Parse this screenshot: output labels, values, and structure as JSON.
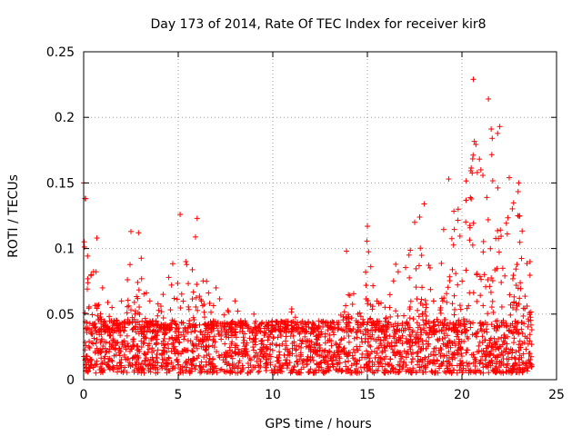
{
  "chart_data": {
    "type": "scatter",
    "title": "Day 173 of 2014, Rate Of TEC Index for receiver kir8",
    "xlabel": "GPS time / hours",
    "ylabel": "ROTI / TECUs",
    "xlim": [
      0,
      25
    ],
    "ylim": [
      0,
      0.25
    ],
    "xticks": [
      0,
      5,
      10,
      15,
      20,
      25
    ],
    "yticks": [
      0,
      0.05,
      0.1,
      0.15,
      0.2,
      0.25
    ],
    "xtick_labels": [
      "0",
      "5",
      "10",
      "15",
      "20",
      "25"
    ],
    "ytick_labels": [
      "0",
      "0.05",
      "0.1",
      "0.15",
      "0.2",
      "0.25"
    ],
    "grid": true,
    "marker": "+",
    "color": "#ff0000",
    "data_x_range": [
      0,
      23.7
    ],
    "series_outline": [
      {
        "x": 0.0,
        "y": 0.15
      },
      {
        "x": 0.1,
        "y": 0.138
      },
      {
        "x": 0.4,
        "y": 0.08
      },
      {
        "x": 0.7,
        "y": 0.108
      },
      {
        "x": 1.0,
        "y": 0.07
      },
      {
        "x": 1.5,
        "y": 0.055
      },
      {
        "x": 2.0,
        "y": 0.06
      },
      {
        "x": 2.5,
        "y": 0.113
      },
      {
        "x": 2.9,
        "y": 0.112
      },
      {
        "x": 3.5,
        "y": 0.06
      },
      {
        "x": 4.2,
        "y": 0.065
      },
      {
        "x": 4.5,
        "y": 0.078
      },
      {
        "x": 5.1,
        "y": 0.126
      },
      {
        "x": 5.4,
        "y": 0.09
      },
      {
        "x": 6.0,
        "y": 0.123
      },
      {
        "x": 6.5,
        "y": 0.075
      },
      {
        "x": 7.0,
        "y": 0.07
      },
      {
        "x": 8.0,
        "y": 0.06
      },
      {
        "x": 9.0,
        "y": 0.05
      },
      {
        "x": 10.0,
        "y": 0.04
      },
      {
        "x": 11.0,
        "y": 0.054
      },
      {
        "x": 12.0,
        "y": 0.035
      },
      {
        "x": 13.0,
        "y": 0.03
      },
      {
        "x": 13.9,
        "y": 0.098
      },
      {
        "x": 14.5,
        "y": 0.05
      },
      {
        "x": 15.0,
        "y": 0.117
      },
      {
        "x": 15.5,
        "y": 0.06
      },
      {
        "x": 16.5,
        "y": 0.088
      },
      {
        "x": 17.2,
        "y": 0.095
      },
      {
        "x": 17.5,
        "y": 0.12
      },
      {
        "x": 18.0,
        "y": 0.134
      },
      {
        "x": 18.5,
        "y": 0.06
      },
      {
        "x": 19.3,
        "y": 0.153
      },
      {
        "x": 19.8,
        "y": 0.13
      },
      {
        "x": 20.6,
        "y": 0.229
      },
      {
        "x": 21.0,
        "y": 0.16
      },
      {
        "x": 21.4,
        "y": 0.214
      },
      {
        "x": 21.6,
        "y": 0.184
      },
      {
        "x": 22.0,
        "y": 0.193
      },
      {
        "x": 22.5,
        "y": 0.154
      },
      {
        "x": 23.0,
        "y": 0.15
      },
      {
        "x": 23.6,
        "y": 0.09
      }
    ],
    "baseline_band": [
      0.005,
      0.045
    ]
  }
}
